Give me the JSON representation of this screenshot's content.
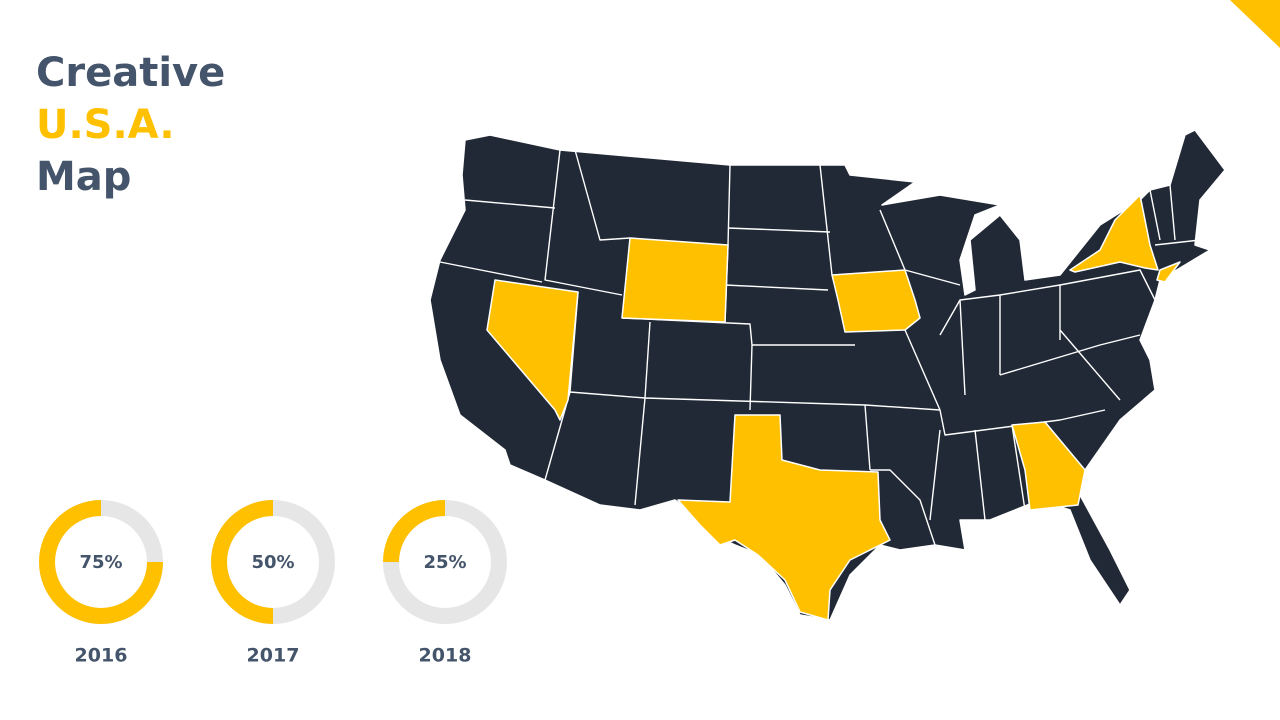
{
  "title": {
    "line1": "Creative",
    "line2": "U.S.A.",
    "line3": "Map"
  },
  "chart_data": [
    {
      "type": "donut",
      "values": [
        75
      ],
      "value_labels": [
        "75%"
      ],
      "caption": "2016",
      "color": "#ffc000",
      "track_color": "#e7e6e6"
    },
    {
      "type": "donut",
      "values": [
        50
      ],
      "value_labels": [
        "50%"
      ],
      "caption": "2017",
      "color": "#ffc000",
      "track_color": "#e7e6e6"
    },
    {
      "type": "donut",
      "values": [
        25
      ],
      "value_labels": [
        "25%"
      ],
      "caption": "2018",
      "color": "#ffc000",
      "track_color": "#e7e6e6"
    }
  ]
}
